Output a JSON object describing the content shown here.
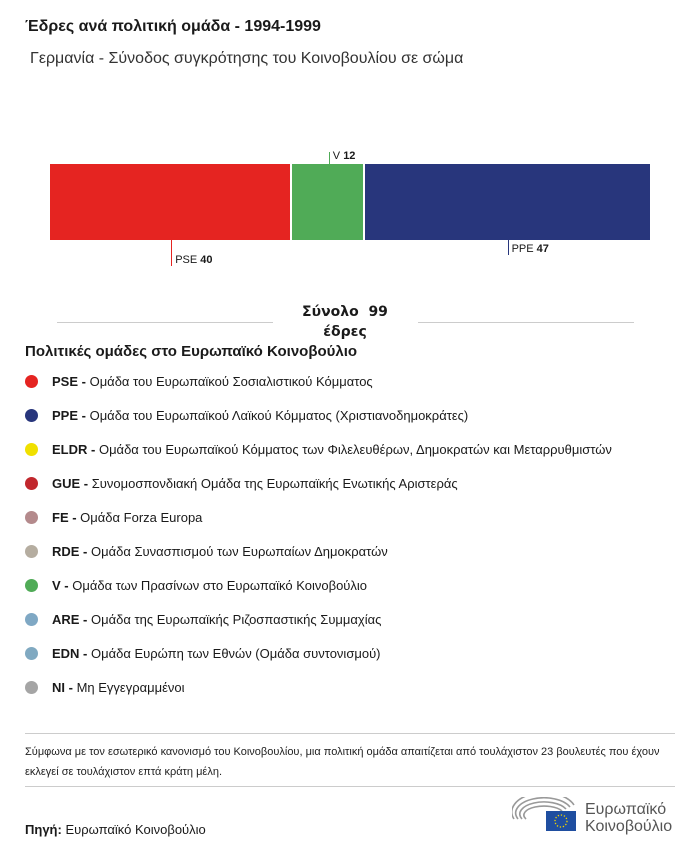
{
  "title": "Έδρες ανά πολιτική ομάδα - 1994-1999",
  "subtitle": "Γερμανία - Σύνοδος συγκρότησης του Κοινοβουλίου σε σώμα",
  "chart_data": {
    "type": "bar",
    "orientation": "horizontal-stacked",
    "title": "Έδρες ανά πολιτική ομάδα - 1994-1999",
    "subtitle": "Γερμανία - Σύνοδος συγκρότησης του Κοινοβουλίου σε σώμα",
    "series": [
      {
        "name": "PSE",
        "value": 40,
        "color": "#e52421",
        "label_pos": "below"
      },
      {
        "name": "V",
        "value": 12,
        "color": "#50ab57",
        "label_pos": "above"
      },
      {
        "name": "PPE",
        "value": 47,
        "color": "#28367c",
        "label_pos": "below"
      }
    ],
    "total_label": "Σύνολο  99",
    "total_unit": "έδρες",
    "total": 99
  },
  "legend": {
    "title": "Πολιτικές ομάδες στο Ευρωπαϊκό Κοινοβούλιο",
    "items": [
      {
        "code": "PSE",
        "desc": "Ομάδα του Ευρωπαϊκού Σοσιαλιστικού Κόμματος",
        "color": "#e52421"
      },
      {
        "code": "PPE",
        "desc": "Ομάδα του Ευρωπαϊκού Λαϊκού Κόμματος (Χριστιανοδημοκράτες)",
        "color": "#28367c"
      },
      {
        "code": "ELDR",
        "desc": "Ομάδα του Ευρωπαϊκού Κόμματος των Φιλελευθέρων, Δημοκρατών και Μεταρρυθμιστών",
        "color": "#f0e000"
      },
      {
        "code": "GUE",
        "desc": "Συνομοσπονδιακή Ομάδα της Ευρωπαϊκής Ενωτικής Αριστεράς",
        "color": "#c1272d"
      },
      {
        "code": "FE",
        "desc": "Ομάδα Forza Europa",
        "color": "#b48a8c"
      },
      {
        "code": "RDE",
        "desc": "Ομάδα Συνασπισμού των Ευρωπαίων Δημοκρατών",
        "color": "#b5ada0"
      },
      {
        "code": "V",
        "desc": "Ομάδα των Πρασίνων στο Ευρωπαϊκό Κοινοβούλιο",
        "color": "#50ab57"
      },
      {
        "code": "ARE",
        "desc": "Ομάδα της Ευρωπαϊκής Ριζοσπαστικής Συμμαχίας",
        "color": "#7fa8c4"
      },
      {
        "code": "EDN",
        "desc": "Ομάδα Ευρώπη των Εθνών (Ομάδα συντονισμού)",
        "color": "#80a9c1"
      },
      {
        "code": "NI",
        "desc": "Μη Εγγεγραμμένοι",
        "color": "#a5a5a5"
      }
    ]
  },
  "note": "Σύμφωνα με τον εσωτερικό κανονισμό του Κοινοβουλίου, μια πολιτική ομάδα απαιτίζεται από τουλάχιστον 23 βουλευτές που έχουν εκλεγεί σε τουλάχιστον επτά κράτη μέλη.",
  "source": {
    "label": "Πηγή:",
    "value": "Ευρωπαϊκό Κοινοβούλιο"
  },
  "logo": {
    "line1": "Ευρωπαϊκό",
    "line2": "Κοινοβούλιο"
  }
}
